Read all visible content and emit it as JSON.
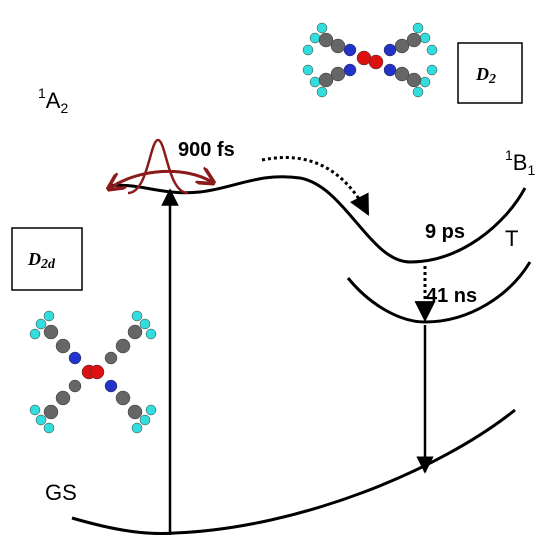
{
  "states": {
    "A2": {
      "sup": "1",
      "main": "A",
      "sub": "2"
    },
    "B1": {
      "sup": "1",
      "main": "B",
      "sub": "1"
    },
    "T": "T",
    "GS": "GS"
  },
  "times": {
    "first": "900 fs",
    "second": "9 ps",
    "third": "41 ns"
  },
  "symmetry": {
    "D2": {
      "main": "D",
      "sub": "2"
    },
    "D2d": {
      "main": "D",
      "sub": "2d"
    }
  }
}
